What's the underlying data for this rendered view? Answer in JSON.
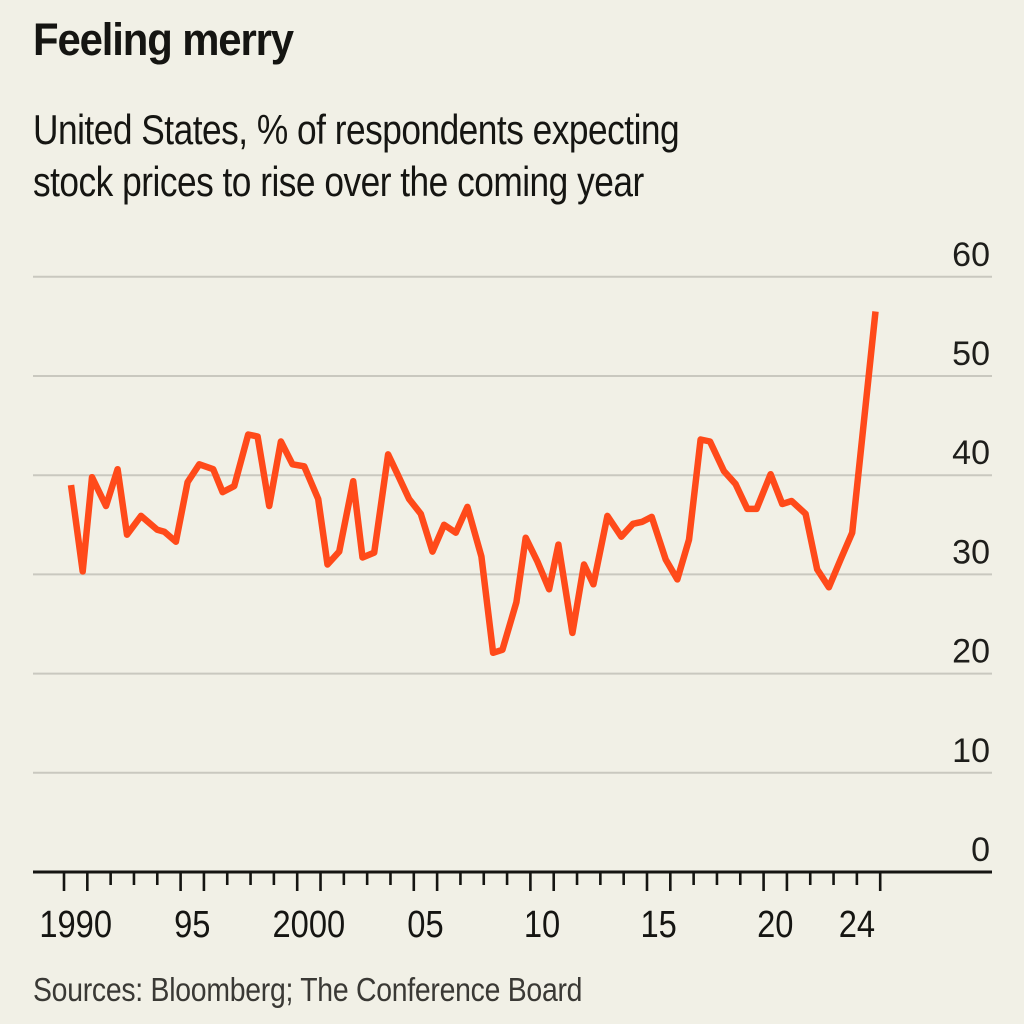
{
  "header": {
    "title": "Feeling merry",
    "subtitle_lines": [
      "United States, % of respondents expecting",
      "stock prices to rise over the coming year"
    ]
  },
  "footer": {
    "source": "Sources: Bloomberg; The Conference Board"
  },
  "colors": {
    "background": "#f1f0e6",
    "line": "#ff4a1a",
    "gridline": "#c9c8bf",
    "axis": "#151512",
    "text": "#151512"
  },
  "chart_data": {
    "type": "line",
    "title": "Feeling merry",
    "subtitle": "United States, % of respondents expecting stock prices to rise over the coming year",
    "xlabel": "",
    "ylabel": "",
    "xlim": [
      1990,
      2025
    ],
    "ylim": [
      0,
      60
    ],
    "yticks": [
      0,
      10,
      20,
      30,
      40,
      50,
      60
    ],
    "ytick_labels": [
      "0",
      "10",
      "20",
      "30",
      "40",
      "50",
      "60"
    ],
    "ytick_side": "right",
    "xtick_labels": [
      {
        "year": 1990.5,
        "label": "1990"
      },
      {
        "year": 1995.5,
        "label": "95"
      },
      {
        "year": 2000.5,
        "label": "2000"
      },
      {
        "year": 2005.5,
        "label": "05"
      },
      {
        "year": 2010.5,
        "label": "10"
      },
      {
        "year": 2015.5,
        "label": "15"
      },
      {
        "year": 2020.5,
        "label": "20"
      },
      {
        "year": 2024,
        "label": "24"
      }
    ],
    "grid": true,
    "legend": "none",
    "source": "Sources: Bloomberg; The Conference Board",
    "series": [
      {
        "name": "Expecting stock prices to rise (%)",
        "color": "#ff4a1a",
        "x": [
          1990.3,
          1990.8,
          1991.2,
          1991.8,
          1992.3,
          1992.7,
          1993.3,
          1994.0,
          1994.3,
          1994.8,
          1995.3,
          1995.8,
          1996.4,
          1996.8,
          1997.3,
          1997.9,
          1998.3,
          1998.8,
          1999.3,
          1999.8,
          2000.3,
          2000.9,
          2001.3,
          2001.8,
          2002.4,
          2002.8,
          2003.3,
          2003.9,
          2004.3,
          2004.8,
          2005.3,
          2005.8,
          2006.3,
          2006.8,
          2007.3,
          2007.9,
          2008.4,
          2008.8,
          2009.4,
          2009.8,
          2010.3,
          2010.8,
          2011.2,
          2011.8,
          2012.3,
          2012.7,
          2013.3,
          2013.9,
          2014.4,
          2014.8,
          2015.2,
          2015.8,
          2016.3,
          2016.8,
          2017.3,
          2017.7,
          2018.3,
          2018.8,
          2019.3,
          2019.7,
          2020.3,
          2020.8,
          2021.2,
          2021.8,
          2022.3,
          2022.8,
          2023.3,
          2023.8,
          2024.8
        ],
        "y": [
          39.0,
          30.3,
          39.8,
          36.9,
          40.6,
          34.0,
          35.9,
          34.5,
          34.3,
          33.3,
          39.3,
          41.1,
          40.6,
          38.3,
          38.9,
          44.1,
          43.9,
          36.9,
          43.4,
          41.1,
          40.9,
          37.6,
          31.0,
          32.3,
          39.4,
          31.7,
          32.2,
          42.1,
          40.1,
          37.6,
          36.1,
          32.3,
          35.0,
          34.2,
          36.8,
          31.8,
          22.1,
          22.4,
          27.2,
          33.7,
          31.3,
          28.5,
          33.0,
          24.1,
          31.0,
          29.0,
          35.9,
          33.8,
          35.1,
          35.3,
          35.8,
          31.5,
          29.5,
          33.5,
          43.6,
          43.4,
          40.4,
          39.1,
          36.6,
          36.6,
          40.1,
          37.1,
          37.4,
          36.1,
          30.5,
          28.7,
          31.5,
          34.2,
          56.5
        ]
      }
    ]
  }
}
